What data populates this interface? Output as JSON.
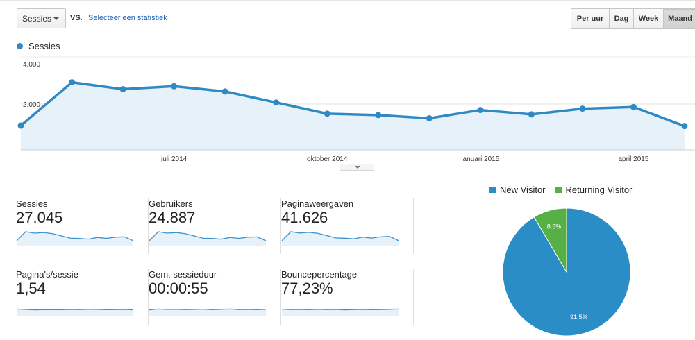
{
  "toolbar": {
    "metric_selector": "Sessies",
    "vs_label": "VS.",
    "select_stat_link": "Selecteer een statistiek",
    "range_buttons": [
      {
        "label": "Per uur",
        "active": false
      },
      {
        "label": "Dag",
        "active": false
      },
      {
        "label": "Week",
        "active": false
      },
      {
        "label": "Maand",
        "active": true
      }
    ]
  },
  "legend": {
    "label": "Sessies",
    "color": "#2f8ac4"
  },
  "chart_data": [
    {
      "type": "area",
      "series": [
        {
          "name": "Sessies",
          "values": [
            1060,
            2950,
            2650,
            2780,
            2550,
            2070,
            1580,
            1520,
            1380,
            1740,
            1550,
            1800,
            1870,
            1040
          ]
        }
      ],
      "x": [
        "2014-04",
        "2014-05",
        "2014-06",
        "2014-07",
        "2014-08",
        "2014-09",
        "2014-10",
        "2014-11",
        "2014-12",
        "2015-01",
        "2015-02",
        "2015-03",
        "2015-04",
        "2015-05"
      ],
      "x_tick_labels": [
        "juli 2014",
        "oktober 2014",
        "januari 2015",
        "april 2015"
      ],
      "y_tick_labels": [
        "4.000",
        "2.000"
      ],
      "ylim": [
        0,
        4000
      ],
      "grid": true,
      "color": "#2f8ac4"
    },
    {
      "type": "pie",
      "categories": [
        "New Visitor",
        "Returning Visitor"
      ],
      "values": [
        91.5,
        8.5
      ],
      "value_labels": [
        "91.5%",
        "8.5%"
      ],
      "colors": [
        "#2a8dc6",
        "#56b046"
      ],
      "legend": "top"
    }
  ],
  "tiles": [
    {
      "label": "Sessies",
      "value": "27.045",
      "spark": [
        1060,
        2950,
        2650,
        2780,
        2550,
        2070,
        1580,
        1520,
        1380,
        1740,
        1550,
        1800,
        1870,
        1040
      ]
    },
    {
      "label": "Gebruikers",
      "value": "24.887",
      "spark": [
        960,
        2720,
        2450,
        2560,
        2350,
        1900,
        1450,
        1400,
        1270,
        1600,
        1430,
        1660,
        1720,
        960
      ]
    },
    {
      "label": "Paginaweergaven",
      "value": "41.626",
      "spark": [
        1600,
        4400,
        4000,
        4200,
        3900,
        3200,
        2450,
        2350,
        2150,
        2700,
        2400,
        2800,
        2900,
        1600
      ]
    },
    {
      "label": "Pagina's/sessie",
      "value": "1,54",
      "spark": [
        1.58,
        1.55,
        1.52,
        1.53,
        1.54,
        1.53,
        1.55,
        1.54,
        1.56,
        1.55,
        1.53,
        1.54,
        1.55,
        1.52
      ]
    },
    {
      "label": "Gem. sessieduur",
      "value": "00:00:55",
      "spark": [
        52,
        58,
        55,
        56,
        54,
        55,
        57,
        53,
        56,
        58,
        54,
        55,
        53,
        56
      ]
    },
    {
      "label": "Bouncepercentage",
      "value": "77,23%",
      "spark": [
        77.5,
        77.2,
        77.3,
        77.1,
        77.4,
        77.2,
        77.3,
        77.0,
        77.2,
        77.3,
        77.1,
        77.2,
        77.4,
        77.6
      ]
    }
  ]
}
